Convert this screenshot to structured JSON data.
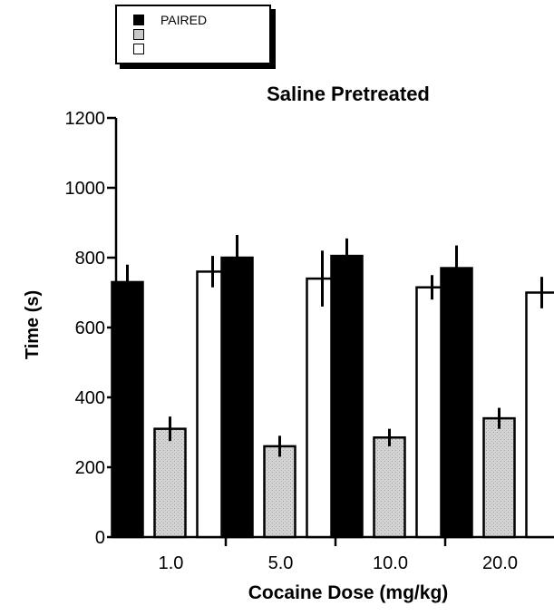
{
  "chart_data": {
    "type": "bar",
    "title": "Saline Pretreated",
    "xlabel": "Cocaine Dose (mg/kg)",
    "ylabel": "Time (s)",
    "ylim": [
      0,
      1200
    ],
    "yticks": [
      0,
      200,
      400,
      600,
      800,
      1000,
      1200
    ],
    "categories": [
      "1.0",
      "5.0",
      "10.0",
      "20.0"
    ],
    "series": [
      {
        "name": "PAIRED",
        "color": "#000000",
        "values": [
          730,
          800,
          805,
          770
        ],
        "errors": [
          50,
          65,
          50,
          65
        ]
      },
      {
        "name": "",
        "color": "#c8c8c8",
        "values": [
          310,
          260,
          285,
          340
        ],
        "errors": [
          35,
          30,
          25,
          30
        ]
      },
      {
        "name": "",
        "color": "#ffffff",
        "values": [
          760,
          740,
          715,
          700
        ],
        "errors": [
          45,
          80,
          35,
          45
        ]
      }
    ],
    "legend_position": "top-left",
    "grid": false
  }
}
